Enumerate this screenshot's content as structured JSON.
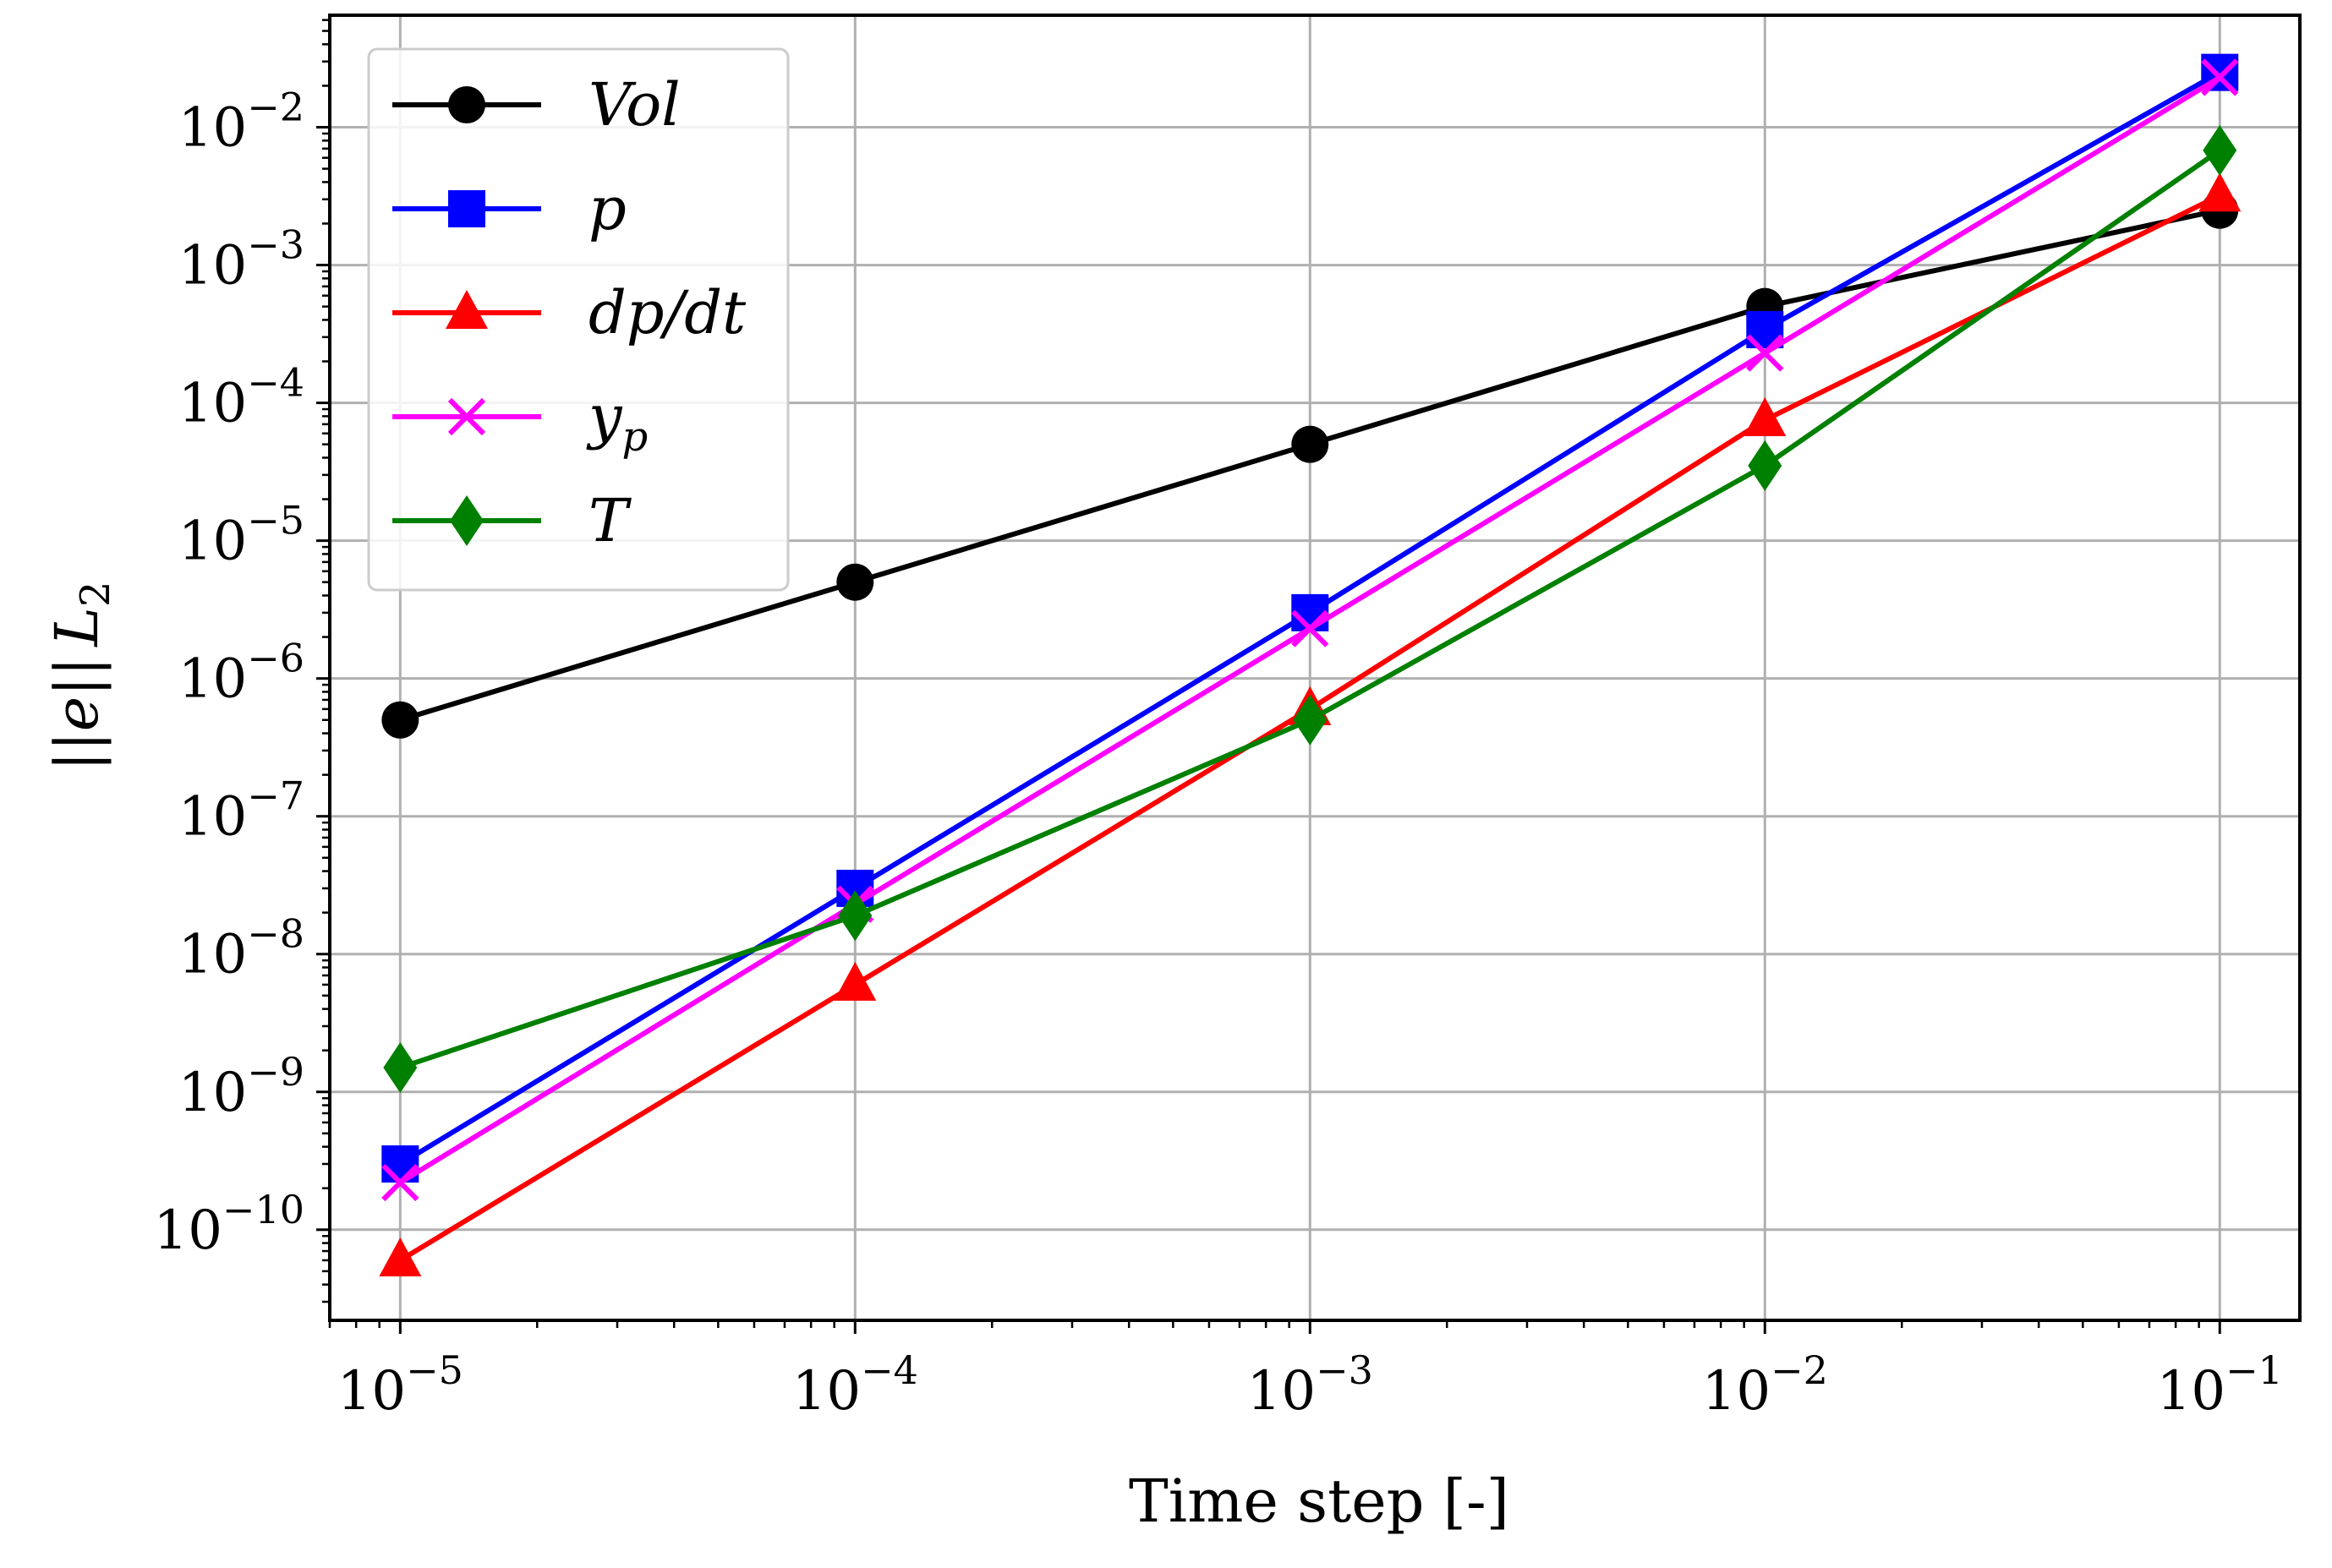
{
  "chart_data": {
    "type": "line",
    "xlabel": "Time step [-]",
    "ylabel_parts": [
      "||",
      "e",
      "||",
      "L",
      "2"
    ],
    "x_scale": "log",
    "y_scale": "log",
    "xlim": [
      7e-06,
      0.15
    ],
    "ylim": [
      2.2e-11,
      0.065
    ],
    "grid": true,
    "legend_position": "top-left",
    "x_ticks": [
      {
        "base": "10",
        "exp": "−5",
        "value": 1e-05
      },
      {
        "base": "10",
        "exp": "−4",
        "value": 0.0001
      },
      {
        "base": "10",
        "exp": "−3",
        "value": 0.001
      },
      {
        "base": "10",
        "exp": "−2",
        "value": 0.01
      },
      {
        "base": "10",
        "exp": "−1",
        "value": 0.1
      }
    ],
    "y_ticks": [
      {
        "base": "10",
        "exp": "−10",
        "value": 1e-10
      },
      {
        "base": "10",
        "exp": "−9",
        "value": 1e-09
      },
      {
        "base": "10",
        "exp": "−8",
        "value": 1e-08
      },
      {
        "base": "10",
        "exp": "−7",
        "value": 1e-07
      },
      {
        "base": "10",
        "exp": "−6",
        "value": 1e-06
      },
      {
        "base": "10",
        "exp": "−5",
        "value": 1e-05
      },
      {
        "base": "10",
        "exp": "−4",
        "value": 0.0001
      },
      {
        "base": "10",
        "exp": "−3",
        "value": 0.001
      },
      {
        "base": "10",
        "exp": "−2",
        "value": 0.01
      }
    ],
    "x": [
      1e-05,
      0.0001,
      0.001,
      0.01,
      0.1
    ],
    "series": [
      {
        "name": "Vol",
        "sub": "",
        "color": "#000000",
        "marker": "circle",
        "values": [
          5e-07,
          5e-06,
          5e-05,
          0.0005,
          0.0025
        ]
      },
      {
        "name": "p",
        "sub": "",
        "color": "#0000ff",
        "marker": "square",
        "values": [
          3e-10,
          3e-08,
          3e-06,
          0.00034,
          0.025
        ]
      },
      {
        "name": "dp/dt",
        "sub": "",
        "color": "#ff0000",
        "marker": "triangle",
        "values": [
          6e-11,
          6e-09,
          6e-07,
          7.5e-05,
          0.0032
        ]
      },
      {
        "name": "y",
        "sub": "p",
        "color": "#ff00ff",
        "marker": "x",
        "values": [
          2.2e-10,
          2.3e-08,
          2.3e-06,
          0.00023,
          0.023
        ]
      },
      {
        "name": "T",
        "sub": "",
        "color": "#008000",
        "marker": "diamond",
        "values": [
          1.5e-09,
          1.9e-08,
          5e-07,
          3.5e-05,
          0.0068
        ]
      }
    ]
  }
}
